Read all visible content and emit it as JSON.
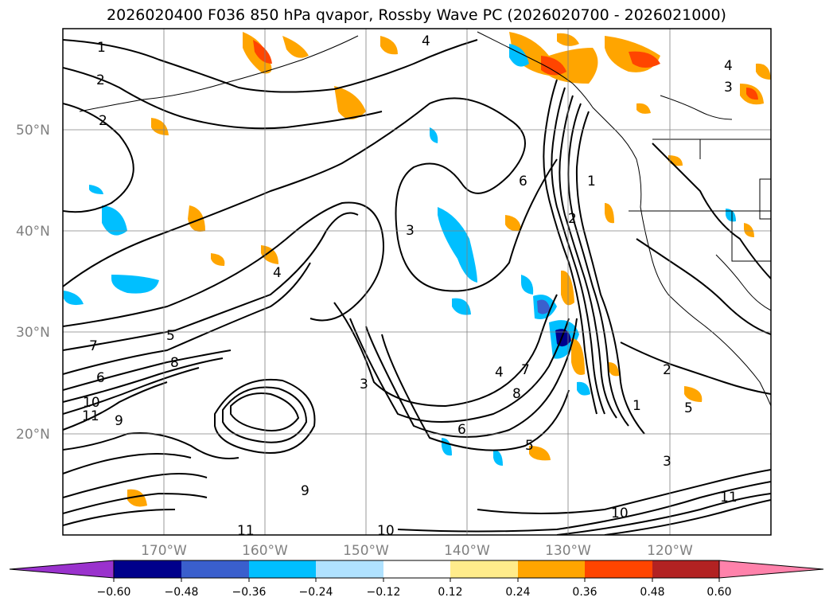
{
  "title": "2026020400 F036 850 hPa qvapor, Rossby Wave PC (2026020700 - 2026021000)",
  "map": {
    "lat_labels": [
      "50°N",
      "40°N",
      "30°N",
      "20°N"
    ],
    "lon_labels": [
      "170°W",
      "160°W",
      "150°W",
      "140°W",
      "130°W",
      "120°W"
    ],
    "contour_labels": [
      "1",
      "2",
      "2",
      "4",
      "3",
      "4",
      "6",
      "1",
      "2",
      "3",
      "4",
      "5",
      "6",
      "7",
      "8",
      "9",
      "10",
      "11",
      "3",
      "4",
      "5",
      "6",
      "7",
      "8",
      "9",
      "10",
      "11",
      "3",
      "2",
      "1",
      "5",
      "10",
      "11"
    ]
  },
  "colorbar": {
    "tick_labels": [
      "−0.60",
      "−0.48",
      "−0.36",
      "−0.24",
      "−0.12",
      "0.12",
      "0.24",
      "0.36",
      "0.48",
      "0.60"
    ],
    "colors": [
      "#9a32cd",
      "#00008b",
      "#3a5fcd",
      "#00bfff",
      "#b0e2ff",
      "#ffffff",
      "#ffec8b",
      "#ffa500",
      "#ff4500",
      "#b22222",
      "#ff82ab"
    ]
  }
}
